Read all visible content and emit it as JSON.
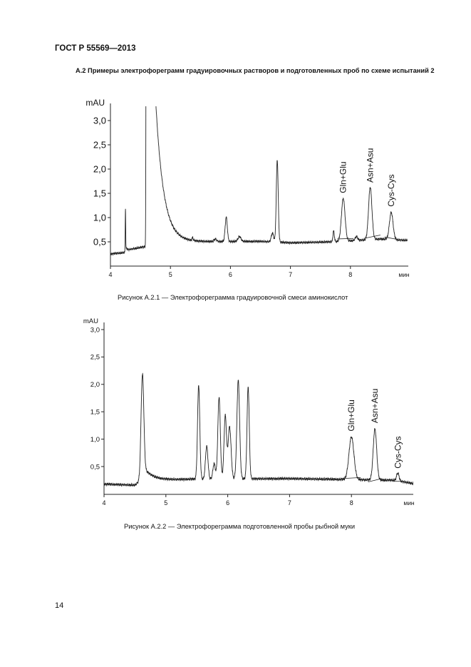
{
  "header": {
    "doc_id": "ГОСТ Р 55569—2013"
  },
  "section": {
    "title": "А.2 Примеры электрофореграмм градуировочных растворов и подготовленных проб по схеме испытаний 2"
  },
  "footer": {
    "page_number": "14"
  },
  "chart_data": [
    {
      "type": "line",
      "caption": "Рисунок А.2.1 — Электрофореграмма градуировочной смеси аминокислот",
      "ylabel": "mAU",
      "xlabel": "мин",
      "xlim": [
        4,
        8.95
      ],
      "ylim": [
        0,
        3.3
      ],
      "xticks": [
        "4",
        "5",
        "6",
        "7",
        "8"
      ],
      "yticks": [
        "0,5",
        "1,0",
        "1,5",
        "2,0",
        "2,5",
        "3,0"
      ],
      "grid": false,
      "baseline": [
        [
          4,
          0.25
        ],
        [
          4.24,
          0.28
        ],
        [
          4.255,
          0.37
        ],
        [
          4.3,
          0.34
        ],
        [
          4.58,
          0.4
        ],
        [
          4.6,
          0.5
        ],
        [
          6.5,
          0.51
        ],
        [
          7.0,
          0.48
        ],
        [
          7.7,
          0.5
        ],
        [
          8.5,
          0.56
        ],
        [
          8.95,
          0.53
        ]
      ],
      "peaks": [
        {
          "t": 4.25,
          "height": 0.85,
          "width": 0.004
        },
        {
          "t": 4.6,
          "height": 9.5,
          "width": 0.006,
          "tail_decay": 0.13
        },
        {
          "t": 5.37,
          "height": 0.06,
          "width": 0.01
        },
        {
          "t": 5.75,
          "height": 0.05,
          "width": 0.02
        },
        {
          "t": 5.93,
          "height": 0.5,
          "width": 0.018
        },
        {
          "t": 6.15,
          "height": 0.1,
          "width": 0.025
        },
        {
          "t": 6.7,
          "height": 0.18,
          "width": 0.02
        },
        {
          "t": 6.78,
          "height": 1.7,
          "width": 0.016
        },
        {
          "t": 7.72,
          "height": 0.22,
          "width": 0.012
        },
        {
          "t": 7.88,
          "height": 0.88,
          "width": 0.03,
          "label": "Gln+Glu",
          "integration": [
            7.78,
            0.56,
            8.05,
            0.57
          ]
        },
        {
          "t": 8.1,
          "height": 0.08,
          "width": 0.02
        },
        {
          "t": 8.33,
          "height": 1.08,
          "width": 0.028,
          "label": "Asn+Asu",
          "integration": [
            8.22,
            0.57,
            8.5,
            0.64
          ]
        },
        {
          "t": 8.68,
          "height": 0.56,
          "width": 0.03,
          "label": "Cys-Cys",
          "integration": [
            8.57,
            0.6,
            8.78,
            0.55
          ]
        }
      ]
    },
    {
      "type": "line",
      "caption": "Рисунок А.2.2 — Электрофореграмма подготовленной пробы рыбной муки",
      "ylabel": "mAU",
      "xlabel": "мин",
      "xlim": [
        4,
        9.0
      ],
      "ylim": [
        0,
        3.05
      ],
      "xticks": [
        "4",
        "5",
        "6",
        "7",
        "8"
      ],
      "yticks": [
        "0,5",
        "1,0",
        "1,5",
        "2,0",
        "2,5",
        "3,0"
      ],
      "grid": false,
      "baseline": [
        [
          4,
          0.18
        ],
        [
          4.5,
          0.16
        ],
        [
          4.56,
          0.22
        ],
        [
          5.0,
          0.25
        ],
        [
          5.4,
          0.27
        ],
        [
          7.0,
          0.28
        ],
        [
          8.7,
          0.25
        ],
        [
          9.0,
          0.19
        ]
      ],
      "peaks": [
        {
          "t": 4.62,
          "height": 1.93,
          "width": 0.022,
          "tail_amp": 0.3,
          "tail_decay": 0.15
        },
        {
          "t": 5.53,
          "height": 1.72,
          "width": 0.018
        },
        {
          "t": 5.66,
          "height": 0.6,
          "width": 0.02
        },
        {
          "t": 5.78,
          "height": 0.28,
          "width": 0.02
        },
        {
          "t": 5.86,
          "height": 1.5,
          "width": 0.02
        },
        {
          "t": 5.96,
          "height": 1.15,
          "width": 0.02
        },
        {
          "t": 6.03,
          "height": 0.95,
          "width": 0.024
        },
        {
          "t": 6.17,
          "height": 1.8,
          "width": 0.022
        },
        {
          "t": 6.33,
          "height": 1.68,
          "width": 0.018
        },
        {
          "t": 8.0,
          "height": 0.78,
          "width": 0.04,
          "label": "Gln+Glu",
          "integration": [
            7.84,
            0.28,
            8.15,
            0.3
          ]
        },
        {
          "t": 8.38,
          "height": 0.93,
          "width": 0.028,
          "label": "Asn+Asu",
          "integration": [
            8.27,
            0.22,
            8.49,
            0.28
          ]
        },
        {
          "t": 8.75,
          "height": 0.14,
          "width": 0.02,
          "label": "Cys-Cys",
          "integration": [
            8.67,
            0.23,
            8.82,
            0.23
          ]
        }
      ]
    }
  ]
}
